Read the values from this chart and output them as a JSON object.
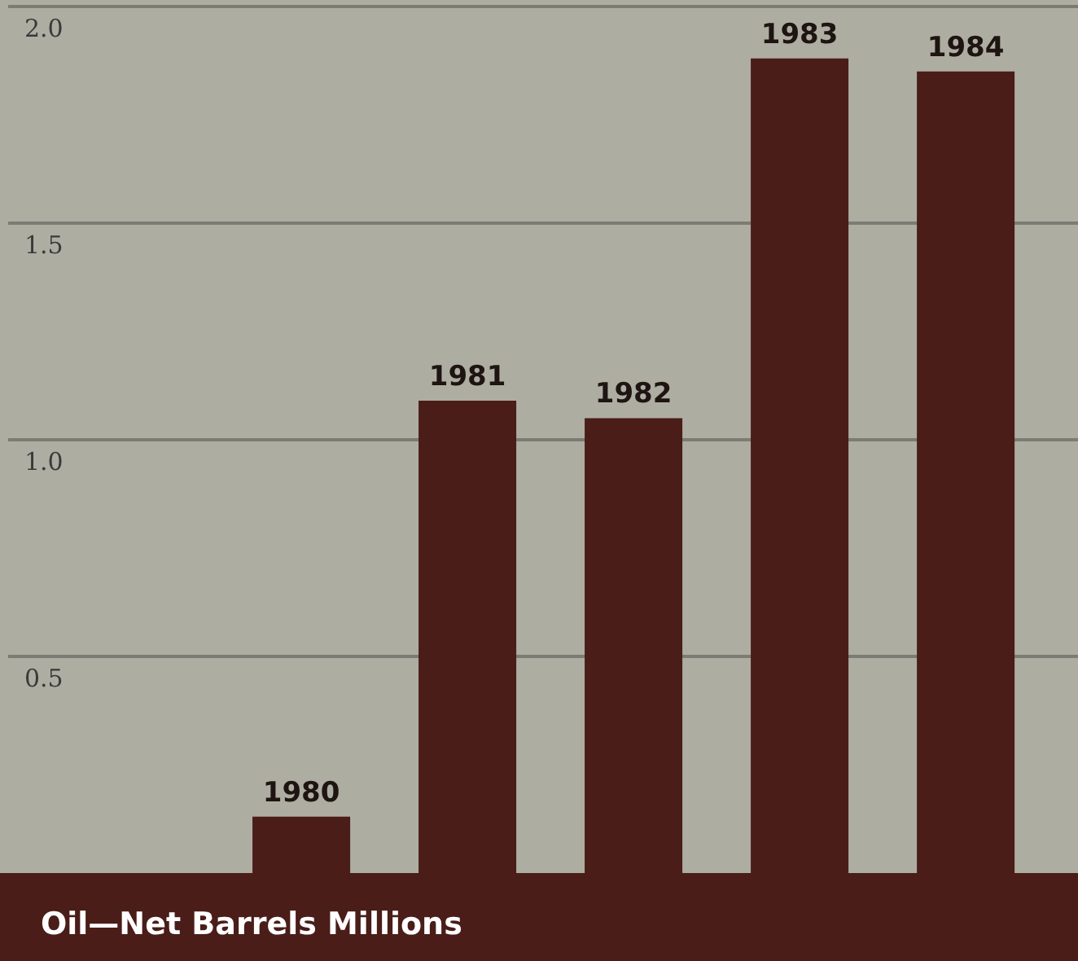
{
  "chart_data": {
    "type": "bar",
    "title": "Oil—Net Barrels Millions",
    "categories": [
      "1980",
      "1981",
      "1982",
      "1983",
      "1984"
    ],
    "values": [
      0.13,
      1.09,
      1.05,
      1.88,
      1.85
    ],
    "color": "#4a1d18",
    "ylim": [
      0,
      2
    ],
    "yticks": [
      0.5,
      {
        "value": 1,
        "label": "1.0"
      },
      1.5,
      {
        "value": 2,
        "label": "2.0"
      }
    ],
    "grid": "y"
  }
}
